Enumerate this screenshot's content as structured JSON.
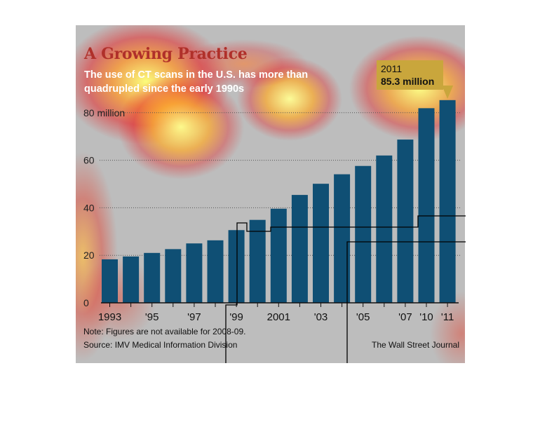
{
  "title": "A Growing Practice",
  "subtitle": "The use of CT scans in the U.S. has more than quadrupled since the early 1990s",
  "callout": {
    "year": "2011",
    "value": "85.3 million"
  },
  "note": "Note: Figures are not available for 2008-09.",
  "source": "Source: IMV Medical Information Division",
  "credit": "The Wall Street Journal",
  "colors": {
    "bar": "#0f4f74",
    "title": "#b0302a",
    "callout": "#c9a63c",
    "background": "#bdbdbd"
  },
  "chart_data": {
    "type": "bar",
    "title": "A Growing Practice",
    "subtitle": "The use of CT scans in the U.S. has more than quadrupled since the early 1990s",
    "categories": [
      "1993",
      "1994",
      "1995",
      "1996",
      "1997",
      "1998",
      "1999",
      "2000",
      "2001",
      "2002",
      "2003",
      "2004",
      "2005",
      "2006",
      "2007",
      "2010",
      "2011"
    ],
    "values": [
      18.3,
      19.5,
      21,
      22.6,
      25,
      26.3,
      30.6,
      34.9,
      39.6,
      45.4,
      50.1,
      54.1,
      57.6,
      62,
      68.7,
      81.9,
      85.3
    ],
    "tick_labels": [
      "1993",
      "",
      "'95",
      "",
      "'97",
      "",
      "'99",
      "",
      "2001",
      "",
      "'03",
      "",
      "'05",
      "",
      "'07",
      "'10",
      "'11"
    ],
    "yticks": [
      0,
      20,
      40,
      60,
      80
    ],
    "ytick_labels": [
      "0",
      "20",
      "40",
      "60",
      "80 million"
    ],
    "ylim": [
      0,
      85.3
    ],
    "xlabel": "",
    "ylabel": "",
    "grid": true,
    "gridlines_dotted": true
  }
}
